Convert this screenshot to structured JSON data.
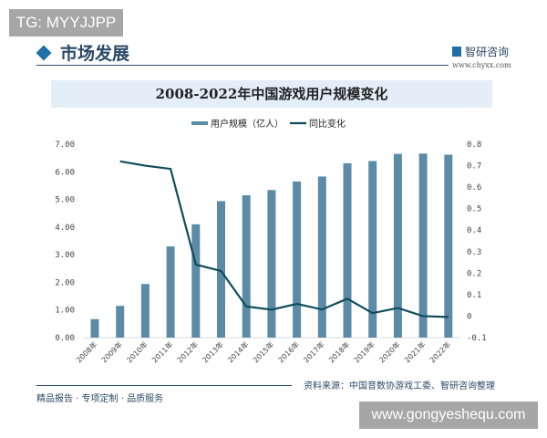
{
  "watermark_top": "TG: MYYJJPP",
  "watermark_bottom": "www.gongyeshequ.com",
  "header": {
    "title": "市场发展",
    "logo_text": "智研咨询",
    "logo_url": "www.chyxx.com"
  },
  "footer": {
    "slogan": "精品报告 · 专项定制 · 品质服务",
    "source": "资料来源：中国音数协游戏工委、智研咨询整理"
  },
  "colors": {
    "bar": "#5b8ba6",
    "line": "#0f4c5c",
    "banner": "#e3eef8"
  },
  "chart_data": {
    "type": "bar+line",
    "title": "2008-2022年中国游戏用户规模变化",
    "categories": [
      "2008年",
      "2009年",
      "2010年",
      "2011年",
      "2012年",
      "2013年",
      "2014年",
      "2015年",
      "2016年",
      "2017年",
      "2018年",
      "2019年",
      "2020年",
      "2021年",
      "2022年"
    ],
    "series": [
      {
        "name": "用户规模（亿人）",
        "type": "bar",
        "axis": "left",
        "values": [
          0.67,
          1.15,
          1.94,
          3.3,
          4.1,
          4.94,
          5.15,
          5.34,
          5.65,
          5.83,
          6.31,
          6.39,
          6.65,
          6.66,
          6.62
        ]
      },
      {
        "name": "同比变化",
        "type": "line",
        "axis": "right",
        "values": [
          null,
          0.72,
          0.7,
          0.685,
          0.24,
          0.21,
          0.045,
          0.03,
          0.057,
          0.031,
          0.081,
          0.014,
          0.038,
          0.0,
          -0.004
        ]
      }
    ],
    "yleft": {
      "ticks": [
        "0.00",
        "1.00",
        "2.00",
        "3.00",
        "4.00",
        "5.00",
        "6.00",
        "7.00"
      ],
      "lim": [
        0,
        7
      ]
    },
    "yright": {
      "ticks": [
        "-0.1",
        "0",
        "0.1",
        "0.2",
        "0.3",
        "0.4",
        "0.5",
        "0.6",
        "0.7",
        "0.8"
      ],
      "lim": [
        -0.1,
        0.8
      ]
    },
    "legend": "top-center",
    "grid": false
  }
}
